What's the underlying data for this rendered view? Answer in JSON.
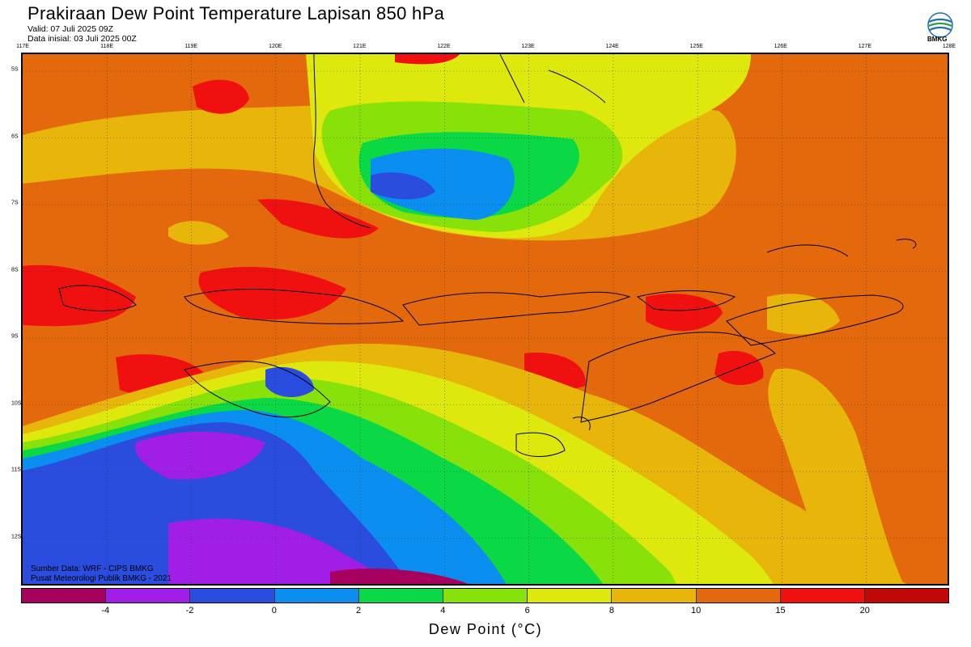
{
  "header": {
    "title": "Prakiraan Dew Point Temperature Lapisan 850 hPa",
    "valid": "Valid: 07 Juli 2025 09Z",
    "initial": "Data inisial: 03 Juli 2025 00Z",
    "logo_text": "BMKG"
  },
  "axes": {
    "lon_labels": [
      "117E",
      "118E",
      "119E",
      "120E",
      "121E",
      "122E",
      "123E",
      "124E",
      "125E",
      "126E",
      "127E",
      "128E"
    ],
    "lat_labels": [
      "5S",
      "6S",
      "7S",
      "8S",
      "9S",
      "10S",
      "11S",
      "12S"
    ]
  },
  "footer": {
    "source": "Sumber Data: WRF - CIPS BMKG",
    "pusat": "Pusat Meteorologi Publik BMKG - 2021"
  },
  "legend": {
    "title": "Dew Point (°C)",
    "ticks": [
      "-4",
      "-2",
      "0",
      "2",
      "4",
      "6",
      "8",
      "10",
      "15",
      "20"
    ],
    "colors": [
      "#a8005e",
      "#a11ee8",
      "#2a4de0",
      "#0a8ff0",
      "#0ad845",
      "#88e20a",
      "#dfe80c",
      "#e8b50a",
      "#e3690c",
      "#f01010",
      "#c00808"
    ]
  },
  "map": {
    "background_color": "#e3690c"
  }
}
